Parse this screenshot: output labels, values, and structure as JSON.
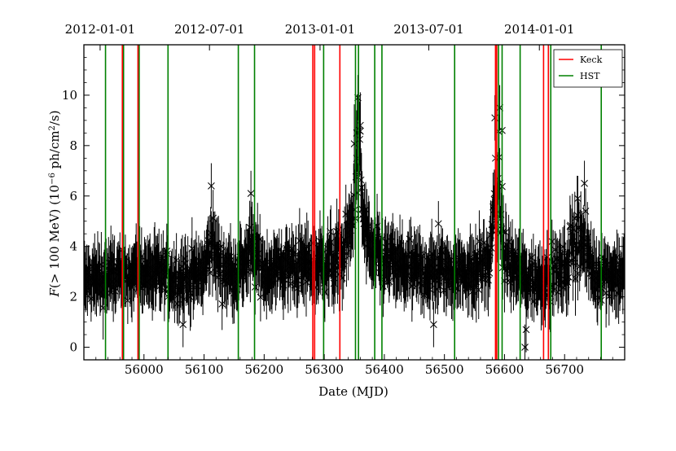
{
  "chart_data": {
    "type": "scatter",
    "title": "",
    "xlabel": "Date (MJD)",
    "ylabel_parts": {
      "f": "F",
      "range": "(> 100 MeV) (10",
      "exp": "−6",
      "unit": " ph/cm",
      "sq": "2",
      "tail": "/s)"
    },
    "xlim": [
      55900,
      56800
    ],
    "ylim": [
      -0.5,
      12
    ],
    "x_ticks": [
      56000,
      56100,
      56200,
      56300,
      56400,
      56500,
      56600,
      56700
    ],
    "y_ticks": [
      0,
      2,
      4,
      6,
      8,
      10
    ],
    "top_axis": {
      "ticks": [
        {
          "mjd": 55927,
          "label": "2012-01-01"
        },
        {
          "mjd": 56109,
          "label": "2012-07-01"
        },
        {
          "mjd": 56293,
          "label": "2013-01-01"
        },
        {
          "mjd": 56474,
          "label": "2013-07-01"
        },
        {
          "mjd": 56658,
          "label": "2014-01-01"
        }
      ]
    },
    "legend": {
      "position": "top-right",
      "entries": [
        {
          "name": "Keck",
          "color": "#ff0000"
        },
        {
          "name": "HST",
          "color": "#008000"
        }
      ]
    },
    "keck_mjd": [
      55964,
      55990,
      56281,
      56284,
      56326,
      56585,
      56587,
      56665,
      56673
    ],
    "hst_mjd": [
      55936,
      55966,
      55992,
      56040,
      56157,
      56184,
      56299,
      56352,
      56357,
      56384,
      56396,
      56517,
      56590,
      56596,
      56626,
      56677,
      56761
    ],
    "flux_envelope": {
      "comment_free": true,
      "x": [
        55900,
        55950,
        56000,
        56050,
        56100,
        56112,
        56130,
        56160,
        56180,
        56200,
        56250,
        56300,
        56330,
        56345,
        56352,
        56358,
        56365,
        56380,
        56400,
        56450,
        56500,
        56550,
        56575,
        56582,
        56590,
        56600,
        56620,
        56650,
        56680,
        56700,
        56722,
        56732,
        56750,
        56800
      ],
      "y": [
        2.6,
        2.8,
        3.0,
        2.7,
        2.9,
        4.2,
        3.0,
        3.1,
        3.8,
        3.0,
        3.2,
        3.3,
        3.6,
        4.6,
        7.0,
        7.5,
        5.0,
        3.6,
        3.4,
        3.0,
        3.0,
        3.0,
        3.4,
        5.0,
        6.5,
        3.6,
        3.0,
        2.6,
        2.9,
        3.0,
        4.6,
        4.0,
        2.9,
        2.9
      ]
    },
    "notable_points": [
      {
        "x": 56112,
        "y": 6.4
      },
      {
        "x": 56178,
        "y": 6.1
      },
      {
        "x": 56356,
        "y": 9.9
      },
      {
        "x": 56354,
        "y": 8.5
      },
      {
        "x": 56360,
        "y": 8.8
      },
      {
        "x": 56584,
        "y": 9.1
      },
      {
        "x": 56592,
        "y": 9.5
      },
      {
        "x": 56596,
        "y": 8.6
      },
      {
        "x": 56585,
        "y": 7.5
      },
      {
        "x": 56722,
        "y": 5.9
      },
      {
        "x": 56733,
        "y": 6.5
      },
      {
        "x": 56482,
        "y": 0.9
      },
      {
        "x": 56490,
        "y": 4.9
      },
      {
        "x": 56634,
        "y": 0.0
      },
      {
        "x": 56636,
        "y": 0.7
      },
      {
        "x": 56065,
        "y": 0.9
      }
    ],
    "colors": {
      "keck": "#ff0000",
      "hst": "#008000",
      "data": "#000000"
    },
    "grid": false
  }
}
